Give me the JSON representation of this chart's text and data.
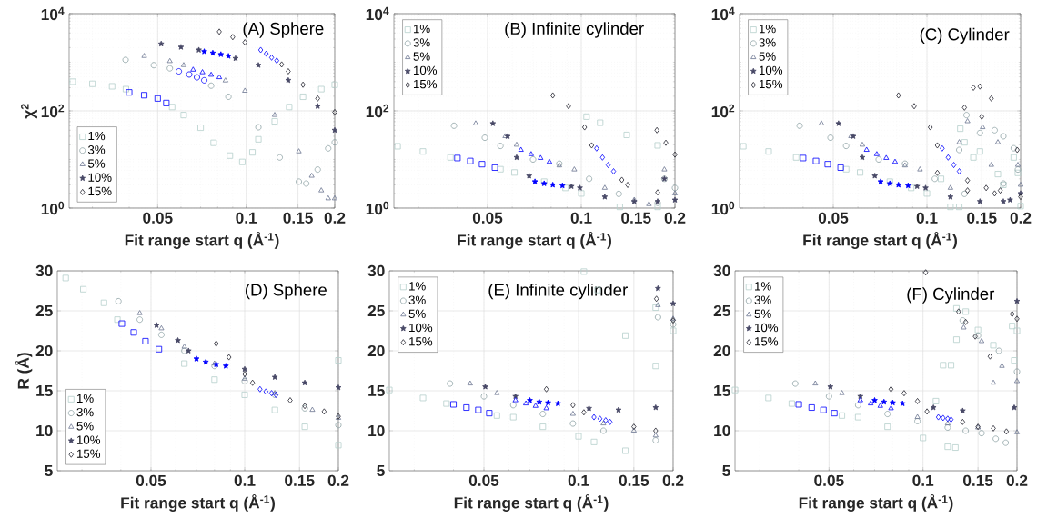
{
  "chart_data": [
    {
      "type": "scatter",
      "title": "(A) Sphere",
      "xlabel": "Fit range start q (Å$^{-1}$)",
      "ylabel": "χ$^{2}$",
      "log": "xy",
      "grid": true,
      "legend": "bottom left",
      "xlim": [
        0.025,
        0.2
      ],
      "xticks": [
        0.05,
        0.1,
        0.15,
        0.2
      ],
      "ylim": [
        1,
        10000
      ],
      "yticks": [
        {
          "value": 1,
          "label": "10$^{0}$"
        },
        {
          "value": 100,
          "label": "10$^{2}$"
        },
        {
          "value": 10000,
          "label": "10$^{4}$"
        }
      ],
      "series": [
        {
          "name": "1%",
          "color": "#b5cfcc",
          "marker": "square",
          "x": [
            0.0257,
            0.03,
            0.035,
            0.039,
            0.056,
            0.0613,
            0.07,
            0.0775,
            0.088,
            0.097,
            0.105,
            0.11,
            0.125,
            0.14,
            0.156,
            0.18,
            0.2
          ],
          "values": [
            398,
            360,
            320,
            280,
            120,
            82,
            45,
            22,
            12,
            8.9,
            14,
            26,
            61,
            120,
            195,
            280,
            345
          ]
        },
        {
          "name": "3%",
          "color": "#8fa3a6",
          "marker": "circle",
          "x": [
            0.0389,
            0.0485,
            0.055,
            0.076,
            0.087,
            0.11,
            0.13,
            0.151,
            0.16,
            0.175,
            0.19,
            0.2
          ],
          "values": [
            1120,
            870,
            750,
            330,
            195,
            46,
            11,
            3.5,
            3.2,
            6.2,
            16.9,
            22.5
          ]
        },
        {
          "name": "5%",
          "color": "#6b7590",
          "marker": "triangle",
          "x": [
            0.045,
            0.055,
            0.0613,
            0.085,
            0.099,
            0.125,
            0.151,
            0.167,
            0.18,
            0.19,
            0.2
          ],
          "values": [
            1340,
            1050,
            870,
            420,
            258,
            82,
            14.6,
            4.6,
            2.3,
            1.58,
            1.58
          ]
        },
        {
          "name": "10%",
          "color": "#474866",
          "marker": "star",
          "x": [
            0.0514,
            0.06,
            0.069,
            0.092,
            0.11,
            0.139,
            0.175,
            0.2
          ],
          "values": [
            2390,
            2050,
            1790,
            1200,
            870,
            425,
            125,
            40
          ]
        },
        {
          "name": "15%",
          "color": "#1f1f2b",
          "marker": "diamond",
          "x": [
            0.081,
            0.09,
            0.099,
            0.132,
            0.139,
            0.156,
            0.175,
            0.2
          ],
          "values": [
            4250,
            3300,
            2570,
            900,
            650,
            345,
            180,
            94
          ]
        },
        {
          "color": "#0000ff",
          "marker": "square",
          "x": [
            0.04,
            0.045,
            0.05,
            0.0535
          ],
          "values": [
            240,
            210,
            180,
            145
          ]
        },
        {
          "color": "#0000ff",
          "marker": "circle",
          "x": [
            0.059,
            0.064,
            0.068,
            0.072
          ],
          "values": [
            650,
            560,
            490,
            425
          ]
        },
        {
          "color": "#0000ff",
          "marker": "triangle",
          "x": [
            0.066,
            0.071,
            0.076,
            0.081
          ],
          "values": [
            700,
            620,
            550,
            490
          ]
        },
        {
          "color": "#0000ff",
          "marker": "star",
          "x": [
            0.072,
            0.077,
            0.082,
            0.087
          ],
          "values": [
            1660,
            1550,
            1450,
            1340
          ]
        },
        {
          "color": "#0000ff",
          "marker": "diamond",
          "x": [
            0.112,
            0.117,
            0.122,
            0.127
          ],
          "values": [
            1790,
            1500,
            1250,
            1080
          ]
        }
      ]
    },
    {
      "type": "scatter",
      "title": "(B) Infinite cylinder",
      "xlabel": "Fit range start q (Å$^{-1}$)",
      "log": "xy",
      "grid": true,
      "legend": "top left",
      "xlim": [
        0.025,
        0.2
      ],
      "xticks": [
        0.05,
        0.1,
        0.15,
        0.2
      ],
      "ylim": [
        1,
        10000
      ],
      "yticks": [
        {
          "value": 1,
          "label": "10$^{0}$"
        },
        {
          "value": 100,
          "label": "10$^{2}$"
        },
        {
          "value": 10000,
          "label": "10$^{4}$"
        }
      ],
      "series": [
        {
          "name": "1%",
          "color": "#b5cfcc",
          "marker": "square",
          "x": [
            0.0257,
            0.031,
            0.038,
            0.055,
            0.061,
            0.076,
            0.089,
            0.1,
            0.104,
            0.115,
            0.133,
            0.14,
            0.176,
            0.176
          ],
          "values": [
            18.7,
            14.6,
            11,
            6.3,
            5.4,
            3.5,
            2.6,
            2.0,
            76,
            57,
            1.06,
            32,
            19.5,
            1.06
          ]
        },
        {
          "name": "3%",
          "color": "#8fa3a6",
          "marker": "circle",
          "x": [
            0.039,
            0.049,
            0.055,
            0.07,
            0.085,
            0.106,
            0.132,
            0.176,
            0.185,
            0.2
          ],
          "values": [
            49.5,
            28,
            19,
            10,
            8.2,
            4.0,
            1.96,
            1.28,
            4.0,
            2.6
          ]
        },
        {
          "name": "5%",
          "color": "#6b7590",
          "marker": "triangle",
          "x": [
            0.0458,
            0.057,
            0.062,
            0.085,
            0.095,
            0.119,
            0.148,
            0.165,
            0.185,
            0.2
          ],
          "values": [
            55,
            30,
            20,
            7.5,
            6.2,
            2.6,
            1.47,
            1.2,
            6.2,
            2.0
          ]
        },
        {
          "name": "10%",
          "color": "#474866",
          "marker": "star",
          "x": [
            0.052,
            0.058,
            0.062,
            0.068,
            0.093,
            0.099,
            0.119,
            0.148,
            0.176,
            0.185,
            0.2
          ],
          "values": [
            55,
            30,
            11,
            4.6,
            2.8,
            2.6,
            1.7,
            1.37,
            1.37,
            4.0,
            1.47
          ]
        },
        {
          "name": "15%",
          "color": "#1f1f2b",
          "marker": "diamond",
          "x": [
            0.081,
            0.091,
            0.1025,
            0.108,
            0.135,
            0.141,
            0.176,
            0.175,
            0.187,
            0.2
          ],
          "values": [
            208,
            125,
            46,
            19.5,
            3.8,
            3.0,
            2.1,
            40,
            22,
            12.6
          ]
        },
        {
          "color": "#0000ff",
          "marker": "square",
          "x": [
            0.04,
            0.044,
            0.048,
            0.0528
          ],
          "values": [
            10.7,
            9.3,
            8.0,
            6.8
          ]
        },
        {
          "color": "#0000ff",
          "marker": "triangle",
          "x": [
            0.064,
            0.069,
            0.074,
            0.079
          ],
          "values": [
            15.7,
            12.8,
            10.7,
            8.9
          ]
        },
        {
          "color": "#0000ff",
          "marker": "star",
          "x": [
            0.071,
            0.076,
            0.081,
            0.087
          ],
          "values": [
            3.5,
            3.2,
            3.0,
            2.9
          ]
        },
        {
          "color": "#0000ff",
          "marker": "diamond",
          "x": [
            0.112,
            0.117,
            0.122,
            0.127
          ],
          "values": [
            16.9,
            11,
            7.7,
            5.7
          ]
        }
      ]
    },
    {
      "type": "scatter",
      "title": "(C) Cylinder",
      "xlabel": "Fit range start q (Å$^{-1}$)",
      "log": "xy",
      "grid": true,
      "legend": "top left",
      "xlim": [
        0.025,
        0.2
      ],
      "xticks": [
        0.05,
        0.1,
        0.15,
        0.2
      ],
      "ylim": [
        1,
        10000
      ],
      "yticks": [
        {
          "value": 1,
          "label": "10$^{0}$"
        },
        {
          "value": 100,
          "label": "10$^{2}$"
        },
        {
          "value": 10000,
          "label": "10$^{4}$"
        }
      ],
      "series": [
        {
          "name": "1%",
          "color": "#b5cfcc",
          "marker": "square",
          "x": [
            0.0257,
            0.031,
            0.038,
            0.055,
            0.061,
            0.076,
            0.089,
            0.1,
            0.111,
            0.119,
            0.127,
            0.128,
            0.132,
            0.141,
            0.148,
            0.169,
            0.176,
            0.19,
            0.196,
            0.2
          ],
          "values": [
            18.7,
            14.6,
            11,
            6.3,
            5.4,
            3.5,
            2.6,
            2.0,
            4.0,
            1.06,
            1.06,
            43,
            22.5,
            11,
            14.6,
            5,
            3,
            11,
            5.3,
            1.1
          ]
        },
        {
          "name": "3%",
          "color": "#8fa3a6",
          "marker": "circle",
          "x": [
            0.039,
            0.049,
            0.055,
            0.07,
            0.085,
            0.106,
            0.132,
            0.127,
            0.134,
            0.148,
            0.165,
            0.176,
            0.19,
            0.196,
            0.176
          ],
          "values": [
            49.5,
            28,
            19,
            10,
            8.2,
            4.0,
            1.96,
            15.7,
            82,
            35,
            40,
            30,
            17,
            6.2,
            3.2
          ]
        },
        {
          "name": "5%",
          "color": "#6b7590",
          "marker": "triangle",
          "x": [
            0.0458,
            0.057,
            0.062,
            0.085,
            0.095,
            0.119,
            0.127,
            0.135,
            0.151,
            0.161,
            0.169,
            0.196,
            0.2
          ],
          "values": [
            55,
            30,
            20,
            7.5,
            6.2,
            2.6,
            22.5,
            61,
            46,
            7.7,
            22.5,
            7.7,
            3.0
          ]
        },
        {
          "name": "10%",
          "color": "#474866",
          "marker": "star",
          "x": [
            0.052,
            0.058,
            0.062,
            0.068,
            0.093,
            0.099,
            0.119,
            0.148,
            0.176,
            0.185,
            0.2
          ],
          "values": [
            55,
            30,
            11,
            4.6,
            2.8,
            2.6,
            1.7,
            1.37,
            1.37,
            1.47,
            2.0
          ]
        },
        {
          "name": "15%",
          "color": "#1f1f2b",
          "marker": "diamond",
          "x": [
            0.081,
            0.091,
            0.1025,
            0.108,
            0.108,
            0.135,
            0.135,
            0.132,
            0.141,
            0.148,
            0.15,
            0.161,
            0.155,
            0.172,
            0.165,
            0.195,
            0.2
          ],
          "values": [
            208,
            125,
            46,
            19.5,
            5.3,
            3.7,
            2.3,
            117,
            300,
            318,
            76,
            180,
            2.6,
            2.3,
            2.0,
            15.7,
            1.7
          ]
        },
        {
          "color": "#0000ff",
          "marker": "square",
          "x": [
            0.04,
            0.044,
            0.048,
            0.0528
          ],
          "values": [
            10.7,
            9.3,
            8.0,
            6.8
          ]
        },
        {
          "color": "#0000ff",
          "marker": "triangle",
          "x": [
            0.064,
            0.069,
            0.074,
            0.079
          ],
          "values": [
            15.7,
            12.8,
            10.7,
            8.9
          ]
        },
        {
          "color": "#0000ff",
          "marker": "star",
          "x": [
            0.071,
            0.076,
            0.081,
            0.087
          ],
          "values": [
            3.5,
            3.2,
            3.0,
            2.9
          ]
        },
        {
          "color": "#0000ff",
          "marker": "diamond",
          "x": [
            0.112,
            0.117,
            0.122,
            0.127
          ],
          "values": [
            16.9,
            11,
            7.7,
            5.7
          ]
        }
      ]
    },
    {
      "type": "scatter",
      "title": "(D) Sphere",
      "xlabel": "Fit range start q (Å$^{-1}$)",
      "ylabel": "R (Å)",
      "log": "x",
      "grid": true,
      "legend": "bottom left",
      "xlim": [
        0.025,
        0.2
      ],
      "xticks": [
        0.05,
        0.1,
        0.15,
        0.2
      ],
      "ylim": [
        5,
        30
      ],
      "yticks": [
        5,
        10,
        15,
        20,
        25,
        30
      ],
      "series": [
        {
          "name": "1%",
          "color": "#b5cfcc",
          "marker": "square",
          "x": [
            0.0266,
            0.0303,
            0.0353,
            0.039,
            0.064,
            0.08,
            0.1,
            0.125,
            0.156,
            0.2,
            0.2
          ],
          "values": [
            29.1,
            27.7,
            26.0,
            23.9,
            18.4,
            16.4,
            14.5,
            12.6,
            10.5,
            8.2,
            18.8
          ]
        },
        {
          "name": "3%",
          "color": "#8fa3a6",
          "marker": "circle",
          "x": [
            0.0393,
            0.046,
            0.054,
            0.064,
            0.08,
            0.1,
            0.125,
            0.156,
            0.2
          ],
          "values": [
            26.2,
            23.9,
            22.0,
            20.0,
            18.1,
            16.2,
            14.5,
            12.8,
            10.7
          ]
        },
        {
          "name": "5%",
          "color": "#6b7590",
          "marker": "triangle",
          "x": [
            0.046,
            0.054,
            0.064,
            0.08,
            0.1,
            0.125,
            0.165,
            0.2
          ],
          "values": [
            24.7,
            22.8,
            20.5,
            18.4,
            16.5,
            14.7,
            12.6,
            11.6
          ]
        },
        {
          "name": "10%",
          "color": "#474866",
          "marker": "star",
          "x": [
            0.0521,
            0.061,
            0.066,
            0.1,
            0.125,
            0.156,
            0.2
          ],
          "values": [
            23.2,
            21.3,
            20.0,
            17.7,
            16.7,
            16.0,
            15.4
          ]
        },
        {
          "name": "15%",
          "color": "#1f1f2b",
          "marker": "diamond",
          "x": [
            0.081,
            0.089,
            0.1,
            0.106,
            0.14,
            0.156,
            0.18,
            0.2
          ],
          "values": [
            20.9,
            19.2,
            17.1,
            16.0,
            13.8,
            13.1,
            12.4,
            11.8
          ]
        },
        {
          "color": "#0000ff",
          "marker": "square",
          "x": [
            0.0403,
            0.044,
            0.048,
            0.053
          ],
          "values": [
            23.4,
            22.3,
            21.2,
            20.2
          ]
        },
        {
          "color": "#0000ff",
          "marker": "star",
          "x": [
            0.07,
            0.075,
            0.081,
            0.087
          ],
          "values": [
            19.0,
            18.6,
            18.3,
            18.1
          ]
        },
        {
          "color": "#0000ff",
          "marker": "diamond",
          "x": [
            0.112,
            0.117,
            0.122,
            0.126
          ],
          "values": [
            15.2,
            14.9,
            14.7,
            14.5
          ]
        }
      ]
    },
    {
      "type": "scatter",
      "title": "(E) Infinite cylinder",
      "xlabel": "Fit range start q (Å$^{-1}$)",
      "log": "x",
      "grid": true,
      "legend": "top left",
      "xlim": [
        0.025,
        0.2
      ],
      "xticks": [
        0.05,
        0.1,
        0.15,
        0.2
      ],
      "ylim": [
        5,
        30
      ],
      "yticks": [
        5,
        10,
        15,
        20,
        25,
        30
      ],
      "series": [
        {
          "name": "1%",
          "color": "#b5cfcc",
          "marker": "square",
          "x": [
            0.025,
            0.032,
            0.038,
            0.055,
            0.062,
            0.077,
            0.1,
            0.104,
            0.115,
            0.141,
            0.176,
            0.112,
            0.141,
            0.176,
            0.2
          ],
          "values": [
            15.1,
            14.1,
            13.4,
            11.9,
            11.7,
            10.5,
            9.3,
            29.9,
            27.6,
            21.9,
            18.1,
            8.6,
            7.5,
            25.4,
            22.5
          ]
        },
        {
          "name": "3%",
          "color": "#8fa3a6",
          "marker": "circle",
          "x": [
            0.039,
            0.05,
            0.062,
            0.077,
            0.096,
            0.12,
            0.176,
            0.179,
            0.2
          ],
          "values": [
            15.9,
            14.3,
            13.2,
            12.1,
            10.9,
            10.0,
            8.8,
            24.2,
            23.3
          ]
        },
        {
          "name": "5%",
          "color": "#6b7590",
          "marker": "triangle",
          "x": [
            0.0452,
            0.055,
            0.096,
            0.12,
            0.15,
            0.176,
            0.179,
            0.2
          ],
          "values": [
            15.9,
            14.7,
            12.1,
            10.9,
            10.0,
            9.4,
            25.7,
            24.0
          ]
        },
        {
          "name": "10%",
          "color": "#474866",
          "marker": "star",
          "x": [
            0.0505,
            0.063,
            0.108,
            0.134,
            0.176,
            0.179,
            0.2
          ],
          "values": [
            15.5,
            14.3,
            12.8,
            12.6,
            12.9,
            27.8,
            25.9
          ]
        },
        {
          "name": "15%",
          "color": "#1f1f2b",
          "marker": "diamond",
          "x": [
            0.079,
            0.096,
            0.104,
            0.15,
            0.176,
            0.177,
            0.2
          ],
          "values": [
            15.2,
            13.2,
            12.3,
            10.5,
            10.0,
            26.5,
            23.8
          ]
        },
        {
          "color": "#0000ff",
          "marker": "square",
          "x": [
            0.04,
            0.044,
            0.048,
            0.052
          ],
          "values": [
            13.3,
            12.9,
            12.6,
            12.2
          ]
        },
        {
          "color": "#0000ff",
          "marker": "triangle",
          "x": [
            0.063,
            0.068,
            0.073,
            0.079
          ],
          "values": [
            13.8,
            13.4,
            13.1,
            12.8
          ]
        },
        {
          "color": "#0000ff",
          "marker": "star",
          "x": [
            0.07,
            0.075,
            0.08,
            0.086
          ],
          "values": [
            13.8,
            13.6,
            13.5,
            13.4
          ]
        },
        {
          "color": "#0000ff",
          "marker": "diamond",
          "x": [
            0.112,
            0.117,
            0.122,
            0.126
          ],
          "values": [
            11.7,
            11.5,
            11.3,
            11.1
          ]
        }
      ]
    },
    {
      "type": "scatter",
      "title": "(F) Cylinder",
      "xlabel": "Fit range start q (Å$^{-1}$)",
      "log": "x",
      "grid": true,
      "legend": "top left",
      "xlim": [
        0.025,
        0.2
      ],
      "xticks": [
        0.05,
        0.1,
        0.15,
        0.2
      ],
      "ylim": [
        5,
        30
      ],
      "yticks": [
        5,
        10,
        15,
        20,
        25,
        30
      ],
      "series": [
        {
          "name": "1%",
          "color": "#b5cfcc",
          "marker": "square",
          "x": [
            0.025,
            0.032,
            0.038,
            0.055,
            0.062,
            0.077,
            0.1,
            0.12,
            0.127,
            0.116,
            0.123,
            0.128,
            0.128,
            0.137,
            0.15,
            0.168,
            0.196,
            0.193,
            0.2,
            0.11
          ],
          "values": [
            15.1,
            14.1,
            13.4,
            11.9,
            11.7,
            10.5,
            9.1,
            8.0,
            7.9,
            18.2,
            18.2,
            25.3,
            21.4,
            24.9,
            22.6,
            20.7,
            18.8,
            23.1,
            22.5,
            13.7
          ]
        },
        {
          "name": "3%",
          "color": "#8fa3a6",
          "marker": "circle",
          "x": [
            0.039,
            0.05,
            0.062,
            0.077,
            0.096,
            0.12,
            0.137,
            0.154,
            0.171,
            0.184,
            0.134,
            0.15,
            0.175,
            0.2
          ],
          "values": [
            15.9,
            14.3,
            13.2,
            12.1,
            11.2,
            10.4,
            10.0,
            9.7,
            9.0,
            8.5,
            23.8,
            21.9,
            20.0,
            17.4
          ]
        },
        {
          "name": "5%",
          "color": "#6b7590",
          "marker": "triangle",
          "x": [
            0.0452,
            0.055,
            0.096,
            0.12,
            0.15,
            0.2,
            0.135,
            0.154,
            0.179,
            0.168,
            0.2
          ],
          "values": [
            15.9,
            14.7,
            11.7,
            10.9,
            10.4,
            9.8,
            22.9,
            21.2,
            18.1,
            16.0,
            16.2
          ]
        },
        {
          "name": "10%",
          "color": "#474866",
          "marker": "star",
          "x": [
            0.0505,
            0.063,
            0.108,
            0.134,
            0.196,
            0.2
          ],
          "values": [
            15.5,
            14.3,
            12.9,
            12.5,
            12.9,
            26.2
          ]
        },
        {
          "name": "15%",
          "color": "#1f1f2b",
          "marker": "diamond",
          "x": [
            0.079,
            0.087,
            0.096,
            0.103,
            0.134,
            0.15,
            0.168,
            0.185,
            0.102,
            0.13,
            0.137,
            0.147,
            0.164,
            0.193,
            0.2
          ],
          "values": [
            15.2,
            14.7,
            13.7,
            12.4,
            11.1,
            10.5,
            10.3,
            9.9,
            29.8,
            24.9,
            23.6,
            21.8,
            19.3,
            24.6,
            24.0
          ]
        },
        {
          "color": "#0000ff",
          "marker": "square",
          "x": [
            0.04,
            0.044,
            0.048,
            0.052
          ],
          "values": [
            13.3,
            12.9,
            12.6,
            12.2
          ]
        },
        {
          "color": "#0000ff",
          "marker": "triangle",
          "x": [
            0.063,
            0.068,
            0.073,
            0.079
          ],
          "values": [
            13.8,
            13.4,
            13.1,
            12.8
          ]
        },
        {
          "color": "#0000ff",
          "marker": "star",
          "x": [
            0.07,
            0.075,
            0.08,
            0.086
          ],
          "values": [
            13.8,
            13.6,
            13.5,
            13.4
          ]
        },
        {
          "color": "#0000ff",
          "marker": "diamond",
          "x": [
            0.112,
            0.116,
            0.12,
            0.123
          ],
          "values": [
            11.7,
            11.6,
            11.5,
            11.4
          ]
        }
      ]
    }
  ]
}
